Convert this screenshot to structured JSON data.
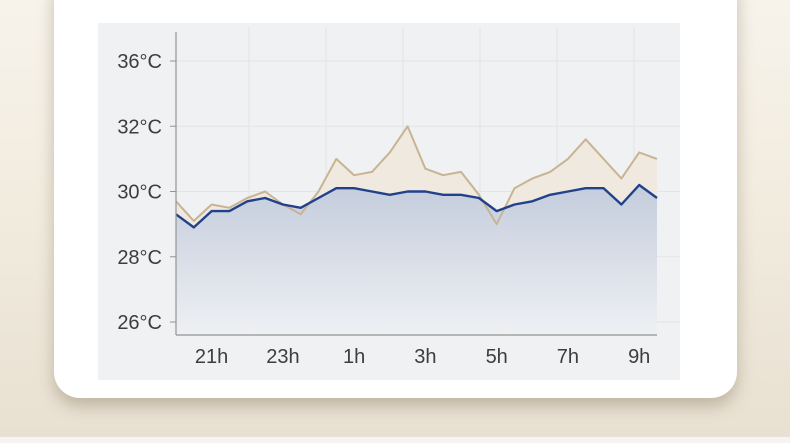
{
  "page": {
    "background_top": "#f7f3eb",
    "background_bottom": "#e8e0d1",
    "card_color": "#ffffff",
    "panel_color": "#f0f1f3"
  },
  "chart_data": {
    "type": "area",
    "title": "",
    "xlabel": "",
    "ylabel": "",
    "legend_position": "none",
    "grid": true,
    "y_unit": "°C",
    "y_ticks": [
      36,
      32,
      30,
      28,
      26
    ],
    "y_tick_labels": [
      "36°C",
      "32°C",
      "30°C",
      "28°C",
      "26°C"
    ],
    "x": [
      "20:00",
      "20:30",
      "21:00",
      "21:30",
      "22:00",
      "22:30",
      "23:00",
      "23:30",
      "00:00",
      "00:30",
      "01:00",
      "01:30",
      "02:00",
      "02:30",
      "03:00",
      "03:30",
      "04:00",
      "04:30",
      "05:00",
      "05:30",
      "06:00",
      "06:30",
      "07:00",
      "07:30",
      "08:00",
      "08:30",
      "09:00",
      "09:30"
    ],
    "x_tick_labels": [
      "21h",
      "23h",
      "1h",
      "3h",
      "5h",
      "7h",
      "9h"
    ],
    "x_tick_indices": [
      2,
      6,
      10,
      14,
      18,
      22,
      26
    ],
    "series": [
      {
        "name": "tan-series",
        "color": "#c8b493",
        "fill": "#efe9df",
        "values": [
          29.7,
          29.1,
          29.6,
          29.5,
          29.8,
          30.0,
          29.6,
          29.3,
          30.0,
          31.0,
          30.5,
          30.6,
          31.2,
          32.0,
          30.7,
          30.5,
          30.6,
          29.9,
          29.0,
          30.1,
          30.4,
          30.6,
          31.0,
          31.6,
          31.0,
          30.4,
          31.2,
          31.0
        ]
      },
      {
        "name": "blue-series",
        "color": "#22418b",
        "fill_gradient_top": "#c4cddd",
        "fill_gradient_bottom": "#eef0f3",
        "values": [
          29.3,
          28.9,
          29.4,
          29.4,
          29.7,
          29.8,
          29.6,
          29.5,
          29.8,
          30.1,
          30.1,
          30.0,
          29.9,
          30.0,
          30.0,
          29.9,
          29.9,
          29.8,
          29.4,
          29.6,
          29.7,
          29.9,
          30.0,
          30.1,
          30.1,
          29.6,
          30.2,
          29.8
        ]
      }
    ],
    "axis_color": "#949494",
    "gridline_color": "#e3e4e6",
    "label_color": "#3d3d3d"
  }
}
